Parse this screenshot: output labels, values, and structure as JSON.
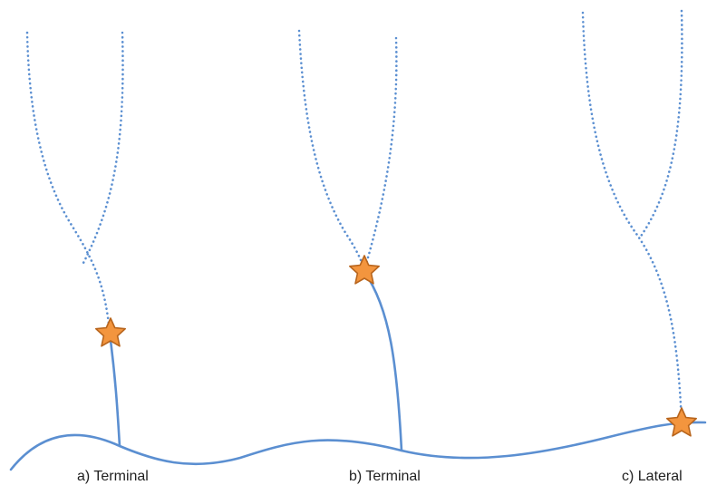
{
  "colors": {
    "line": "#5b8fd1",
    "star_fill": "#f3953e",
    "star_stroke": "#b8651d",
    "label": "#222222"
  },
  "panels": [
    {
      "id": "a",
      "label": "a) Terminal"
    },
    {
      "id": "b",
      "label": "b) Terminal"
    },
    {
      "id": "c",
      "label": "c) Lateral"
    }
  ]
}
